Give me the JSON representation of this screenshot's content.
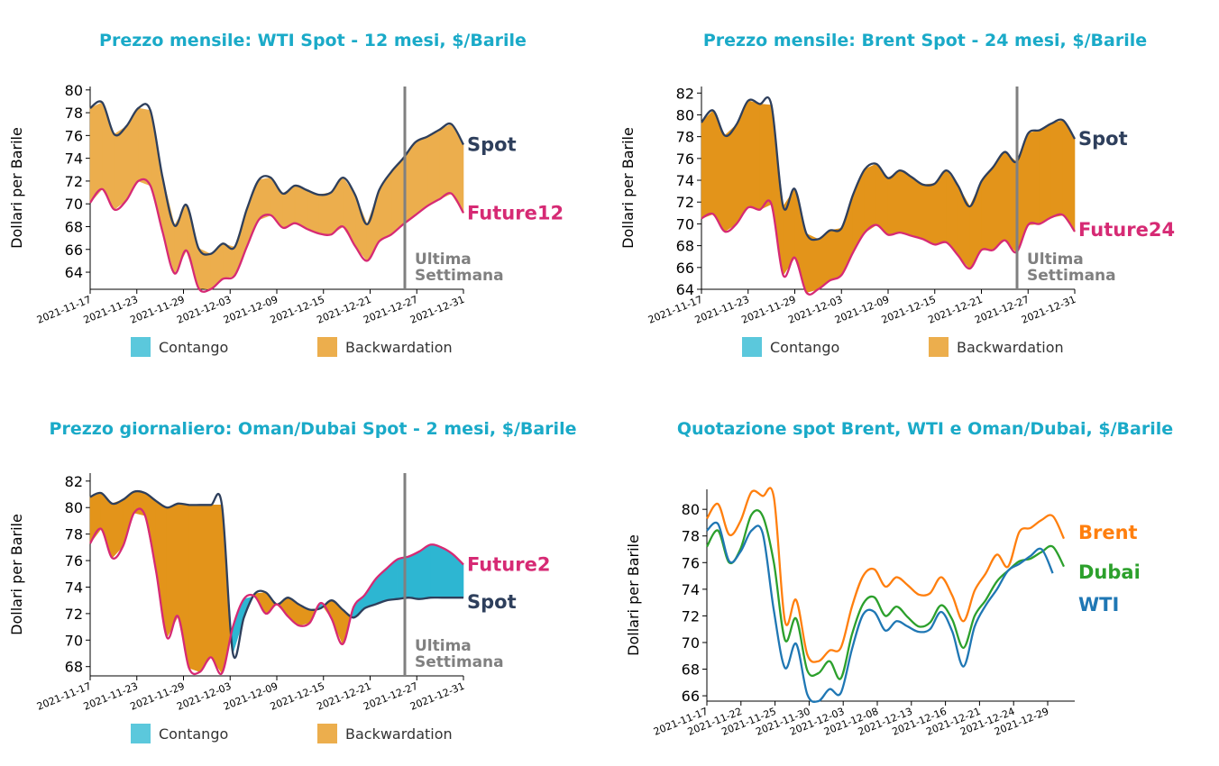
{
  "colors": {
    "title": "#1aaac8",
    "spot": "#2e3f5c",
    "future": "#d62a74",
    "contango": "#5bc8dc",
    "backwardation": "#ecae4d",
    "fill_backwardation_dark": "#e3941a",
    "fill_contango_dark": "#2db6d2",
    "week_line": "#808080",
    "brent": "#ff7f0e",
    "dubai": "#2ca02c",
    "wti": "#1f77b4"
  },
  "legend": {
    "contango": "Contango",
    "backwardation": "Backwardation"
  },
  "chart_data": [
    {
      "id": "wti",
      "type": "area",
      "title": "Prezzo mensile: WTI Spot - 12 mesi, $/Barile",
      "ylabel": "Dollari per Barile",
      "ylim": [
        62.5,
        80.3
      ],
      "yticks": [
        64,
        66,
        68,
        70,
        72,
        74,
        76,
        78,
        80
      ],
      "xticklabels": [
        "2021-11-17",
        "2021-11-23",
        "2021-11-29",
        "2021-12-03",
        "2021-12-09",
        "2021-12-15",
        "2021-12-21",
        "2021-12-27",
        "2021-12-31"
      ],
      "week_line_label": [
        "Ultima",
        "Settimana"
      ],
      "fill_mode": "light",
      "series": [
        {
          "name": "Spot",
          "values": [
            78.4,
            78.9,
            76.1,
            76.8,
            78.4,
            78.2,
            72.4,
            68.1,
            69.9,
            66.1,
            65.6,
            66.5,
            66.2,
            69.5,
            72.1,
            72.3,
            70.9,
            71.6,
            71.2,
            70.8,
            71.0,
            72.3,
            70.8,
            68.2,
            71.2,
            72.8,
            74.0,
            75.4,
            75.9,
            76.5,
            77.0,
            75.2
          ]
        },
        {
          "name": "Future12",
          "values": [
            70.1,
            71.3,
            69.5,
            70.3,
            72.0,
            71.6,
            67.6,
            63.9,
            65.9,
            62.6,
            62.5,
            63.4,
            63.7,
            66.2,
            68.6,
            69.0,
            67.9,
            68.3,
            67.8,
            67.4,
            67.3,
            68.0,
            66.3,
            65.0,
            66.7,
            67.3,
            68.2,
            69.0,
            69.8,
            70.4,
            70.9,
            69.2
          ]
        }
      ]
    },
    {
      "id": "brent",
      "type": "area",
      "title": "Prezzo mensile: Brent Spot - 24 mesi, $/Barile",
      "ylabel": "Dollari per Barile",
      "ylim": [
        64.0,
        82.6
      ],
      "yticks": [
        64,
        66,
        68,
        70,
        72,
        74,
        76,
        78,
        80,
        82
      ],
      "xticklabels": [
        "2021-11-17",
        "2021-11-23",
        "2021-11-29",
        "2021-12-03",
        "2021-12-09",
        "2021-12-15",
        "2021-12-21",
        "2021-12-27",
        "2021-12-31"
      ],
      "week_line_label": [
        "Ultima",
        "Settimana"
      ],
      "fill_mode": "dark",
      "series": [
        {
          "name": "Spot",
          "values": [
            79.3,
            80.4,
            78.1,
            79.1,
            81.3,
            81.0,
            80.9,
            71.6,
            73.2,
            69.1,
            68.6,
            69.4,
            69.6,
            72.7,
            75.0,
            75.5,
            74.2,
            74.9,
            74.3,
            73.6,
            73.7,
            74.9,
            73.5,
            71.6,
            73.9,
            75.2,
            76.6,
            75.7,
            78.3,
            78.6,
            79.2,
            79.5,
            77.8
          ]
        },
        {
          "name": "Future24",
          "values": [
            70.5,
            70.9,
            69.3,
            70.0,
            71.5,
            71.3,
            71.8,
            65.3,
            66.9,
            63.7,
            64.0,
            64.8,
            65.3,
            67.4,
            69.2,
            69.9,
            69.0,
            69.2,
            68.9,
            68.6,
            68.1,
            68.3,
            67.1,
            65.9,
            67.6,
            67.6,
            68.5,
            67.4,
            69.9,
            70.0,
            70.6,
            70.8,
            69.3
          ]
        }
      ]
    },
    {
      "id": "oman",
      "type": "area",
      "title": "Prezzo giornaliero: Oman/Dubai Spot - 2 mesi, $/Barile",
      "ylabel": "Dollari per Barile",
      "ylim": [
        67.3,
        82.6
      ],
      "yticks": [
        68,
        70,
        72,
        74,
        76,
        78,
        80,
        82
      ],
      "xticklabels": [
        "2021-11-17",
        "2021-11-23",
        "2021-11-29",
        "2021-12-03",
        "2021-12-09",
        "2021-12-15",
        "2021-12-21",
        "2021-12-27",
        "2021-12-31"
      ],
      "week_line_label": [
        "Ultima",
        "Settimana"
      ],
      "fill_mode": "dark",
      "series": [
        {
          "name": "Spot",
          "values": [
            80.8,
            81.1,
            80.3,
            80.6,
            81.2,
            81.1,
            80.5,
            80.0,
            80.3,
            80.2,
            80.2,
            80.2,
            80.2,
            69.0,
            71.7,
            73.5,
            73.6,
            72.7,
            73.2,
            72.7,
            72.3,
            72.4,
            73.0,
            72.3,
            71.7,
            72.4,
            72.7,
            73.0,
            73.1,
            73.2,
            73.1,
            73.2,
            73.2,
            73.2,
            73.2
          ]
        },
        {
          "name": "Future2",
          "values": [
            77.3,
            78.4,
            76.2,
            77.1,
            79.6,
            79.4,
            75.2,
            70.2,
            71.8,
            67.9,
            67.6,
            68.7,
            67.5,
            71.0,
            73.1,
            73.3,
            72.0,
            72.7,
            71.8,
            71.1,
            71.3,
            72.8,
            71.6,
            69.7,
            72.5,
            73.4,
            74.6,
            75.4,
            76.1,
            76.3,
            76.7,
            77.2,
            77.0,
            76.5,
            75.7
          ]
        }
      ]
    },
    {
      "id": "spot",
      "type": "line",
      "title": "Quotazione spot Brent, WTI e Oman/Dubai, $/Barile",
      "ylabel": "Dollari per Barile",
      "ylim": [
        65.6,
        81.5
      ],
      "yticks": [
        66,
        68,
        70,
        72,
        74,
        76,
        78,
        80
      ],
      "xticklabels": [
        "2021-11-17",
        "2021-11-22",
        "2021-11-25",
        "2021-11-30",
        "2021-12-03",
        "2021-12-08",
        "2021-12-13",
        "2021-12-16",
        "2021-12-21",
        "2021-12-24",
        "2021-12-29"
      ],
      "series": [
        {
          "name": "Brent",
          "values": [
            79.3,
            80.4,
            78.1,
            79.1,
            81.3,
            81.0,
            80.9,
            71.6,
            73.2,
            69.1,
            68.6,
            69.4,
            69.6,
            72.7,
            75.0,
            75.5,
            74.2,
            74.9,
            74.3,
            73.6,
            73.7,
            74.9,
            73.5,
            71.6,
            73.9,
            75.2,
            76.6,
            75.7,
            78.3,
            78.6,
            79.2,
            79.5,
            77.8
          ]
        },
        {
          "name": "Dubai",
          "values": [
            77.2,
            78.4,
            76.0,
            77.0,
            79.6,
            79.5,
            76.0,
            70.2,
            71.8,
            67.9,
            67.7,
            68.6,
            67.3,
            70.6,
            72.9,
            73.4,
            72.0,
            72.7,
            71.9,
            71.2,
            71.5,
            72.8,
            71.7,
            69.6,
            72.0,
            73.2,
            74.6,
            75.4,
            76.1,
            76.3,
            76.8,
            77.2,
            75.7
          ]
        },
        {
          "name": "WTI",
          "values": [
            78.4,
            78.9,
            76.1,
            76.8,
            78.4,
            78.2,
            72.4,
            68.1,
            69.9,
            66.1,
            65.6,
            66.5,
            66.2,
            69.5,
            72.1,
            72.3,
            70.9,
            71.6,
            71.2,
            70.8,
            71.0,
            72.3,
            70.8,
            68.2,
            71.2,
            72.8,
            74.0,
            75.4,
            75.9,
            76.5,
            77.0,
            75.2
          ]
        }
      ]
    }
  ]
}
